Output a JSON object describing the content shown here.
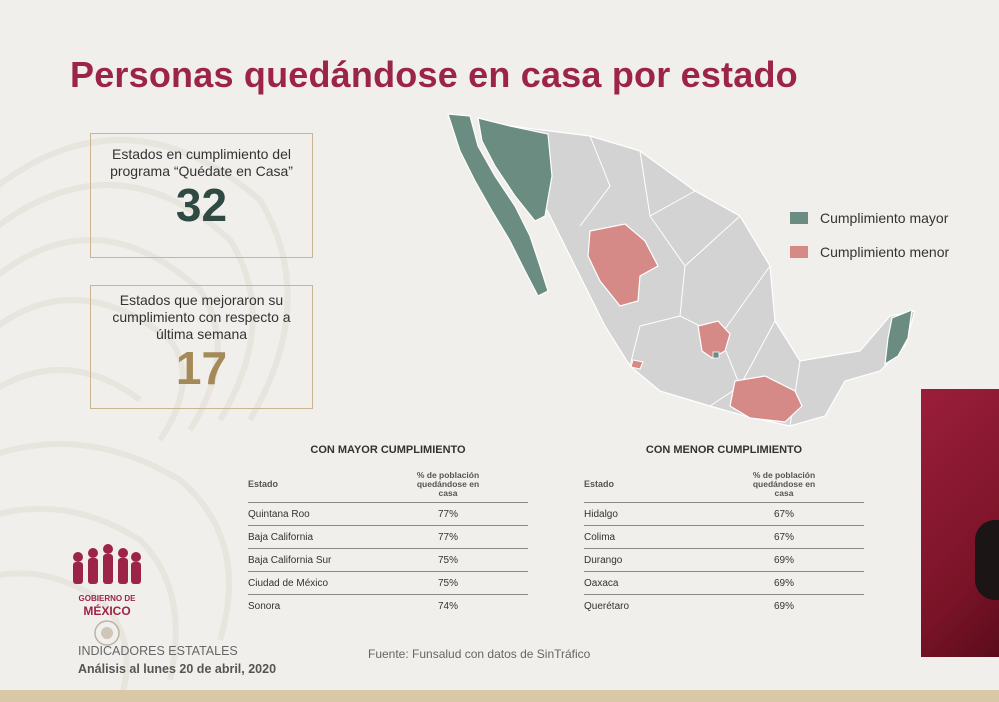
{
  "title": "Personas quedándose en casa por estado",
  "box1": {
    "label": "Estados en cumplimiento del programa “Quédate en Casa”",
    "value": "32"
  },
  "box2": {
    "label": "Estados que mejoraron su cumplimiento con respecto a última semana",
    "value": "17"
  },
  "legend": {
    "mayor": "Cumplimiento mayor",
    "menor": "Cumplimiento menor"
  },
  "colors": {
    "mayor": "#6b8d81",
    "menor": "#d68a88",
    "base": "#d3d3d3",
    "brand": "#9d2449"
  },
  "table_left": {
    "title": "CON MAYOR CUMPLIMIENTO",
    "col_state": "Estado",
    "col_pct": "% de población quedándose en casa",
    "rows": [
      {
        "state": "Quintana Roo",
        "pct": "77%"
      },
      {
        "state": "Baja California",
        "pct": "77%"
      },
      {
        "state": "Baja California Sur",
        "pct": "75%"
      },
      {
        "state": "Ciudad de México",
        "pct": "75%"
      },
      {
        "state": "Sonora",
        "pct": "74%"
      }
    ]
  },
  "table_right": {
    "title": "CON MENOR CUMPLIMIENTO",
    "col_state": "Estado",
    "col_pct": "% de población quedándose en casa",
    "rows": [
      {
        "state": "Hidalgo",
        "pct": "67%"
      },
      {
        "state": "Colima",
        "pct": "67%"
      },
      {
        "state": "Durango",
        "pct": "69%"
      },
      {
        "state": "Oaxaca",
        "pct": "69%"
      },
      {
        "state": "Querétaro",
        "pct": "69%"
      }
    ]
  },
  "footer": {
    "gobierno": "GOBIERNO DE",
    "mexico": "MÉXICO",
    "indicadores": "INDICADORES ESTATALES",
    "analisis": "Análisis al lunes 20 de abril, 2020",
    "fuente": "Fuente: Funsalud con datos de SinTráfico"
  }
}
